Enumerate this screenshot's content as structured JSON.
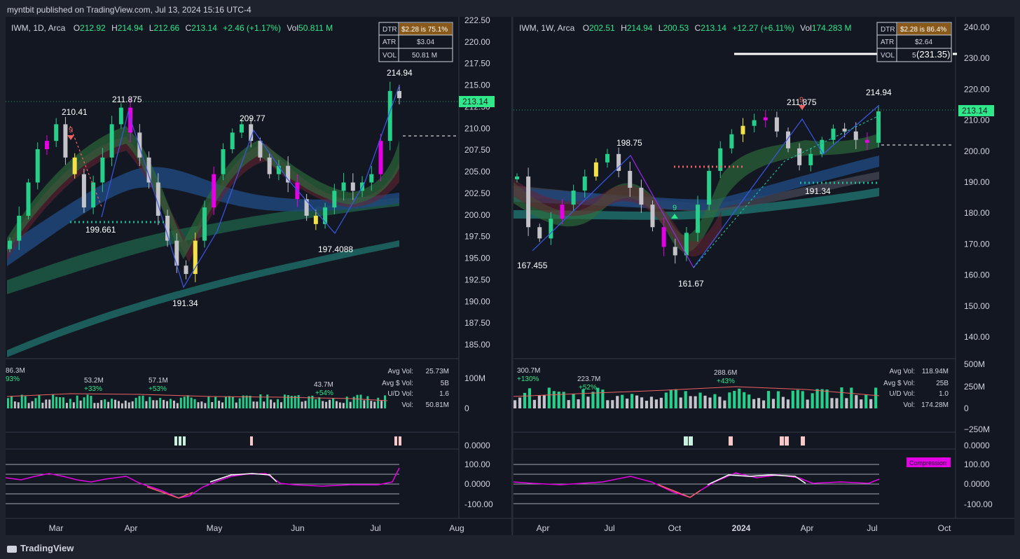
{
  "header": {
    "publisher": "myntbit published on TradingView.com, Jul 13, 2024 15:16 UTC-4"
  },
  "footer": {
    "brand": "TradingView",
    "brand_icon": "tradingview-logo-icon"
  },
  "colors": {
    "background": "#131722",
    "frame": "#1e222d",
    "up": "#26d08a",
    "down": "#c3c3c9",
    "last_price": "#2ee88a",
    "accent_magenta": "#e600e6",
    "signal_red": "#f06262"
  },
  "panels": [
    {
      "symbol": "IWM, 1D, Arca",
      "ohlc": {
        "o_label": "O",
        "o": "212.92",
        "h_label": "H",
        "h": "214.94",
        "l_label": "L",
        "l": "212.66",
        "c_label": "C",
        "c": "213.14",
        "change": "+2.46 (+1.17%)",
        "vol_label": "Vol",
        "vol": "50.811 M"
      },
      "stats_table": [
        {
          "label": "DTR",
          "value": "$2.28 is 75.1%"
        },
        {
          "label": "ATR",
          "value": "$3.04"
        },
        {
          "label": "VOL",
          "value": "50.81 M"
        }
      ],
      "last_price_label": "213.14",
      "price_axis": [
        "222.50",
        "220.00",
        "217.50",
        "215.00",
        "212.50",
        "210.00",
        "207.50",
        "205.00",
        "202.50",
        "200.00",
        "197.50",
        "195.00",
        "192.50",
        "190.00",
        "187.50",
        "185.00"
      ],
      "time_axis": [
        "Mar",
        "Apr",
        "May",
        "Jun",
        "Jul",
        "Aug"
      ],
      "pivot_labels": [
        "210.41",
        "211.875",
        "209.77",
        "214.94",
        "199.661",
        "197.4088",
        "191.34"
      ],
      "td_count": "9",
      "volume": {
        "header_labels": [
          "86.3M",
          "93%",
          "53.2M",
          "+33%",
          "57.1M",
          "+53%",
          "43.7M",
          "+54%"
        ],
        "stats": [
          {
            "label": "Avg Vol:",
            "value": "25.73M"
          },
          {
            "label": "Avg $ Vol:",
            "value": "5B"
          },
          {
            "label": "U/D Vol:",
            "value": "1.6"
          },
          {
            "label": "Vol:",
            "value": "50.81M"
          }
        ],
        "axis": [
          "100M",
          "0"
        ]
      },
      "signal_axis": "0.0000",
      "oscillator_axis": [
        "100.00",
        "0.0000",
        "-100.00"
      ]
    },
    {
      "symbol": "IWM, 1W, Arca",
      "ohlc": {
        "o_label": "O",
        "o": "202.51",
        "h_label": "H",
        "h": "214.94",
        "l_label": "L",
        "l": "200.53",
        "c_label": "C",
        "c": "213.14",
        "change": "+12.27 (+6.11%)",
        "vol_label": "Vol",
        "vol": "174.283 M"
      },
      "stats_table": [
        {
          "label": "DTR",
          "value": "$2.28 is 86.4%"
        },
        {
          "label": "ATR",
          "value": "$2.64"
        },
        {
          "label": "VOL",
          "value": "5"
        }
      ],
      "last_price_label": "213.14",
      "target_label": "(231.35)",
      "price_axis": [
        "240.00",
        "230.00",
        "220.00",
        "210.00",
        "200.00",
        "190.00",
        "180.00",
        "170.00",
        "160.00",
        "150.00",
        "140.00"
      ],
      "time_axis": [
        "Apr",
        "Jul",
        "Oct",
        "2024",
        "Apr",
        "Jul",
        "Oct"
      ],
      "pivot_labels": [
        "198.75",
        "211.875",
        "214.94",
        "167.455",
        "161.67",
        "191.34"
      ],
      "td_count_top": "9",
      "td_count_bottom": "9",
      "volume": {
        "header_labels": [
          "300.7M",
          "+130%",
          "223.7M",
          "+52%",
          "288.6M",
          "+43%"
        ],
        "stats": [
          {
            "label": "Avg Vol:",
            "value": "118.94M"
          },
          {
            "label": "Avg $ Vol:",
            "value": "25B"
          },
          {
            "label": "U/D Vol:",
            "value": "1.0"
          },
          {
            "label": "Vol:",
            "value": "174.28M"
          }
        ],
        "axis": [
          "500M",
          "250M",
          "0",
          "−250M"
        ]
      },
      "signal_axis": "0.0000",
      "oscillator_badge": "Compression",
      "oscillator_axis": [
        "100.00",
        "0.0000",
        "-100.00"
      ]
    }
  ],
  "chart_data": [
    {
      "type": "line",
      "series": [
        {
          "values": [
            196,
            199,
            203,
            207,
            208,
            210,
            206,
            204,
            200,
            203,
            206,
            210,
            212,
            209,
            206,
            203,
            199,
            196,
            193,
            192,
            196,
            200,
            204,
            207,
            209,
            210,
            208,
            206,
            204,
            205,
            203,
            201,
            199,
            198,
            200,
            202,
            203,
            202,
            203,
            204,
            208,
            214,
            213.14
          ]
        }
      ],
      "ylim": [
        183.5,
        222.5
      ],
      "grid": false,
      "legend": "none"
    },
    {
      "type": "line",
      "series": [
        {
          "values": [
            190,
            172,
            168,
            175,
            180,
            185,
            190,
            195,
            198,
            192,
            186,
            180,
            172,
            165,
            162,
            170,
            180,
            192,
            200,
            205,
            208,
            210,
            211,
            206,
            200,
            194,
            198,
            203,
            207,
            206,
            203,
            202,
            213.14
          ]
        }
      ],
      "ylim": [
        133,
        243
      ],
      "grid": false,
      "legend": "none"
    }
  ]
}
